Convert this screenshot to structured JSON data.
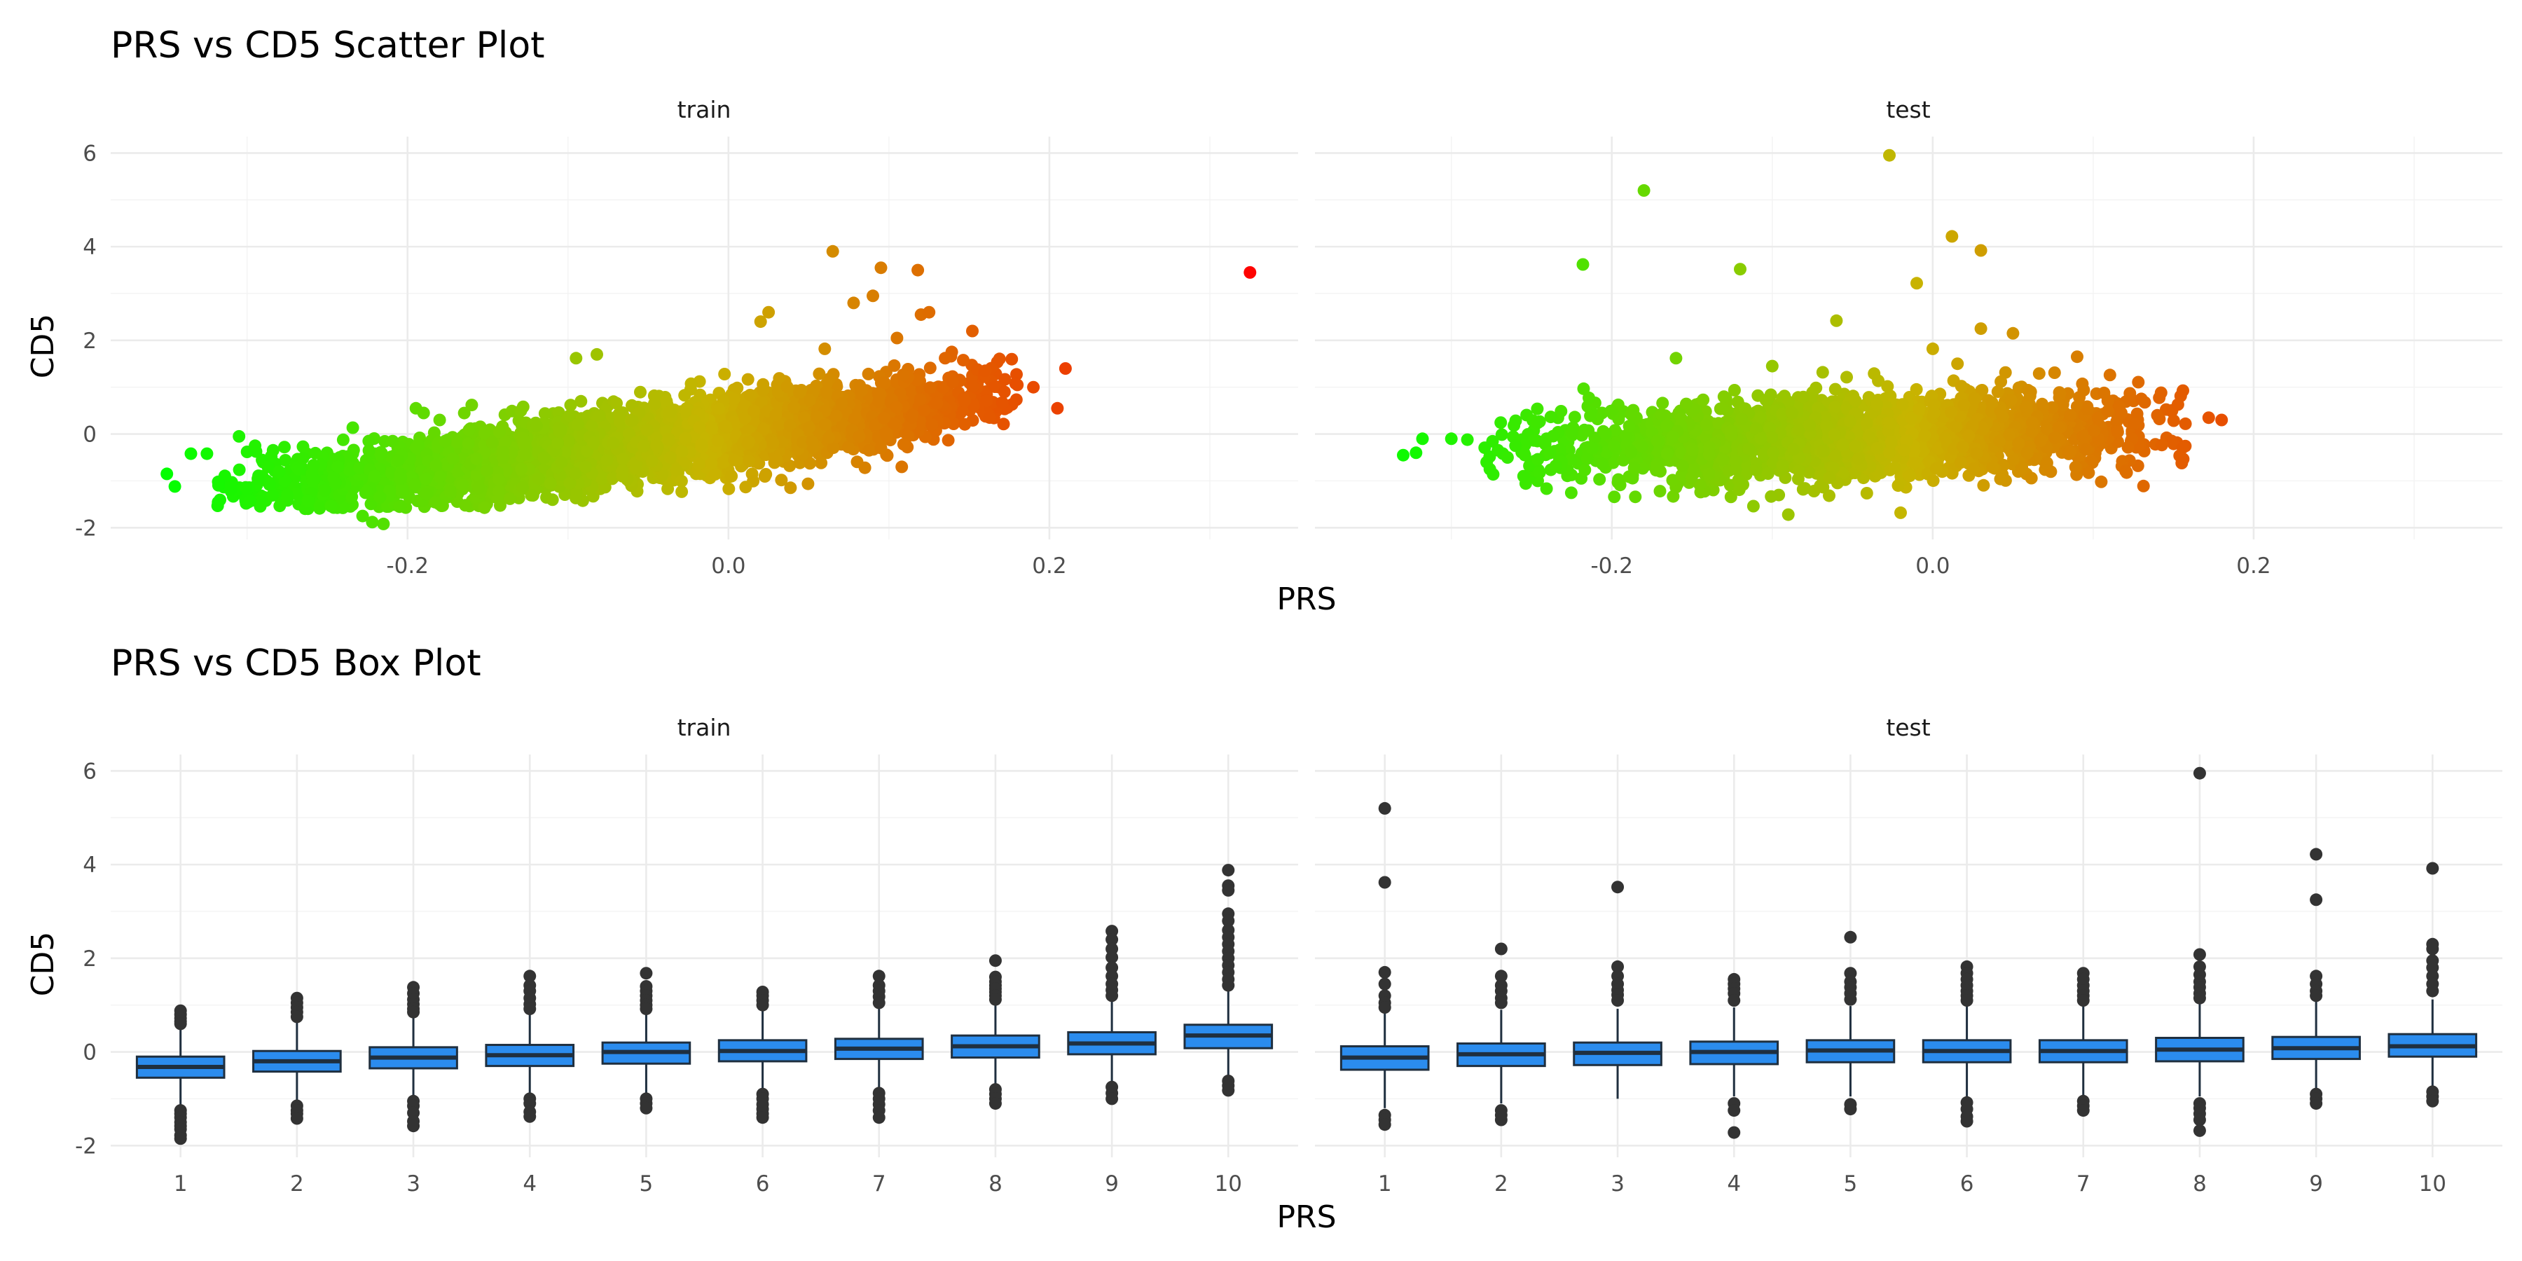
{
  "chart_data": [
    {
      "type": "scatter",
      "title": "PRS vs CD5 Scatter Plot",
      "xlabel": "PRS",
      "ylabel": "CD5",
      "xlim": [
        -0.385,
        0.355
      ],
      "ylim": [
        -2.25,
        6.35
      ],
      "x_ticks": [
        -0.2,
        0.0,
        0.2
      ],
      "x_tick_labels": [
        "-0.2",
        "0.0",
        "0.2"
      ],
      "y_ticks": [
        -2,
        0,
        2,
        4,
        6
      ],
      "y_tick_labels": [
        "-2",
        "0",
        "2",
        "4",
        "6"
      ],
      "grid": true,
      "legend": "none",
      "color_scale": {
        "low": "#00ff00",
        "mid": "#c8b400",
        "high": "#ff0000",
        "mapped_to": "PRS"
      },
      "facets": [
        {
          "label": "train",
          "n_points_approx": 12000,
          "trend": {
            "slope": 4.5,
            "intercept": 0.05,
            "sd": 0.38
          },
          "x_core_range": [
            -0.3,
            0.17
          ],
          "points": [
            [
              -0.35,
              -0.85
            ],
            [
              -0.345,
              -1.12
            ],
            [
              -0.335,
              -0.42
            ],
            [
              -0.325,
              -0.42
            ],
            [
              -0.318,
              -1.02
            ],
            [
              -0.31,
              -1.1
            ],
            [
              -0.305,
              -0.05
            ],
            [
              -0.3,
              -0.38
            ],
            [
              -0.295,
              -0.25
            ],
            [
              -0.29,
              -0.6
            ],
            [
              -0.287,
              -0.7
            ],
            [
              -0.28,
              -0.8
            ],
            [
              -0.275,
              -1.3
            ],
            [
              -0.262,
              -1.42
            ],
            [
              -0.228,
              -1.75
            ],
            [
              -0.222,
              -1.88
            ],
            [
              -0.215,
              -1.92
            ],
            [
              -0.205,
              -1.55
            ],
            [
              -0.19,
              0.45
            ],
            [
              -0.18,
              0.3
            ],
            [
              -0.16,
              0.62
            ],
            [
              -0.095,
              1.62
            ],
            [
              -0.082,
              1.7
            ],
            [
              0.02,
              2.4
            ],
            [
              0.025,
              2.6
            ],
            [
              0.06,
              1.82
            ],
            [
              0.065,
              3.9
            ],
            [
              0.078,
              2.8
            ],
            [
              0.09,
              2.95
            ],
            [
              0.095,
              3.55
            ],
            [
              0.105,
              2.05
            ],
            [
              0.118,
              3.5
            ],
            [
              0.12,
              2.55
            ],
            [
              0.125,
              2.6
            ],
            [
              0.135,
              1.62
            ],
            [
              0.152,
              2.2
            ],
            [
              0.16,
              1.35
            ],
            [
              0.172,
              0.9
            ],
            [
              0.18,
              1.05
            ],
            [
              0.19,
              1.0
            ],
            [
              0.205,
              0.55
            ],
            [
              0.21,
              1.4
            ],
            [
              0.325,
              3.45
            ],
            [
              0.085,
              -0.72
            ],
            [
              0.108,
              -0.7
            ],
            [
              0.095,
              -0.3
            ]
          ]
        },
        {
          "label": "test",
          "n_points_approx": 3000,
          "trend": {
            "slope": 0.9,
            "intercept": 0.0,
            "sd": 0.45
          },
          "x_core_range": [
            -0.26,
            0.15
          ],
          "points": [
            [
              -0.33,
              -0.45
            ],
            [
              -0.322,
              -0.4
            ],
            [
              -0.318,
              -0.1
            ],
            [
              -0.3,
              -0.1
            ],
            [
              -0.29,
              -0.12
            ],
            [
              -0.278,
              -0.6
            ],
            [
              -0.276,
              -0.75
            ],
            [
              -0.265,
              -0.5
            ],
            [
              -0.26,
              -0.25
            ],
            [
              -0.255,
              -0.9
            ],
            [
              -0.245,
              -0.82
            ],
            [
              -0.235,
              -0.68
            ],
            [
              -0.218,
              3.62
            ],
            [
              -0.18,
              5.2
            ],
            [
              -0.12,
              3.52
            ],
            [
              -0.06,
              2.42
            ],
            [
              -0.027,
              5.95
            ],
            [
              -0.01,
              3.22
            ],
            [
              0.012,
              4.22
            ],
            [
              0.03,
              3.92
            ],
            [
              0.03,
              2.25
            ],
            [
              0.05,
              2.15
            ],
            [
              0.09,
              1.65
            ],
            [
              0.13,
              0.75
            ],
            [
              0.14,
              0.4
            ],
            [
              0.172,
              0.35
            ],
            [
              0.18,
              0.3
            ],
            [
              0.105,
              -1.02
            ],
            [
              -0.09,
              -1.72
            ],
            [
              -0.02,
              -1.68
            ],
            [
              -0.17,
              -1.22
            ],
            [
              -0.16,
              1.62
            ],
            [
              -0.1,
              1.45
            ],
            [
              0.0,
              1.82
            ]
          ]
        }
      ]
    },
    {
      "type": "box",
      "title": "PRS vs CD5 Box Plot",
      "xlabel": "PRS",
      "ylabel": "CD5",
      "ylim": [
        -2.25,
        6.35
      ],
      "categories": [
        "1",
        "2",
        "3",
        "4",
        "5",
        "6",
        "7",
        "8",
        "9",
        "10"
      ],
      "y_ticks": [
        -2,
        0,
        2,
        4,
        6
      ],
      "y_tick_labels": [
        "-2",
        "0",
        "2",
        "4",
        "6"
      ],
      "grid": true,
      "legend": "none",
      "box_fill": "#2b8cee",
      "box_line": "#1f2f3f",
      "facets": [
        {
          "label": "train",
          "boxes": [
            {
              "q1": -0.55,
              "median": -0.32,
              "q3": -0.1,
              "whisk_lo": -1.2,
              "whisk_hi": 0.55,
              "outliers": [
                0.88,
                0.8,
                0.72,
                0.65,
                0.6,
                -1.25,
                -1.32,
                -1.4,
                -1.5,
                -1.58,
                -1.65,
                -1.78,
                -1.85
              ]
            },
            {
              "q1": -0.42,
              "median": -0.2,
              "q3": 0.02,
              "whisk_lo": -1.1,
              "whisk_hi": 0.65,
              "outliers": [
                1.15,
                1.05,
                0.95,
                0.85,
                0.75,
                -1.15,
                -1.25,
                -1.32,
                -1.42
              ]
            },
            {
              "q1": -0.35,
              "median": -0.12,
              "q3": 0.1,
              "whisk_lo": -1.0,
              "whisk_hi": 0.78,
              "outliers": [
                1.38,
                1.25,
                1.12,
                1.02,
                0.92,
                0.85,
                -1.05,
                -1.15,
                -1.3,
                -1.48,
                -1.58
              ]
            },
            {
              "q1": -0.3,
              "median": -0.07,
              "q3": 0.15,
              "whisk_lo": -0.95,
              "whisk_hi": 0.82,
              "outliers": [
                1.62,
                1.42,
                1.3,
                1.15,
                1.02,
                0.92,
                -1.0,
                -1.1,
                -1.28,
                -1.38
              ]
            },
            {
              "q1": -0.25,
              "median": 0.0,
              "q3": 0.2,
              "whisk_lo": -0.9,
              "whisk_hi": 0.86,
              "outliers": [
                1.68,
                1.4,
                1.3,
                1.2,
                1.1,
                1.0,
                0.92,
                -1.0,
                -1.1,
                -1.2
              ]
            },
            {
              "q1": -0.2,
              "median": 0.02,
              "q3": 0.25,
              "whisk_lo": -0.85,
              "whisk_hi": 0.92,
              "outliers": [
                1.28,
                1.2,
                1.1,
                1.0,
                -0.9,
                -1.0,
                -1.12,
                -1.22,
                -1.32,
                -1.4
              ]
            },
            {
              "q1": -0.15,
              "median": 0.07,
              "q3": 0.28,
              "whisk_lo": -0.8,
              "whisk_hi": 0.95,
              "outliers": [
                1.62,
                1.42,
                1.3,
                1.18,
                1.05,
                -0.88,
                -1.0,
                -1.12,
                -1.25,
                -1.4
              ]
            },
            {
              "q1": -0.12,
              "median": 0.12,
              "q3": 0.35,
              "whisk_lo": -0.75,
              "whisk_hi": 1.02,
              "outliers": [
                1.95,
                1.6,
                1.5,
                1.42,
                1.35,
                1.28,
                1.2,
                1.12,
                -0.8,
                -0.9,
                -1.0,
                -1.1
              ]
            },
            {
              "q1": -0.05,
              "median": 0.18,
              "q3": 0.42,
              "whisk_lo": -0.7,
              "whisk_hi": 1.08,
              "outliers": [
                2.58,
                2.4,
                2.2,
                2.02,
                1.8,
                1.62,
                1.45,
                1.32,
                1.2,
                -0.75,
                -0.88,
                -1.0
              ]
            },
            {
              "q1": 0.08,
              "median": 0.35,
              "q3": 0.58,
              "whisk_lo": -0.55,
              "whisk_hi": 1.3,
              "outliers": [
                3.88,
                3.55,
                3.45,
                2.95,
                2.8,
                2.6,
                2.45,
                2.3,
                2.15,
                2.0,
                1.85,
                1.7,
                1.55,
                1.42,
                -0.62,
                -0.72,
                -0.82
              ]
            }
          ]
        },
        {
          "label": "test",
          "boxes": [
            {
              "q1": -0.38,
              "median": -0.12,
              "q3": 0.12,
              "whisk_lo": -1.2,
              "whisk_hi": 0.85,
              "outliers": [
                5.2,
                3.62,
                1.7,
                1.45,
                1.2,
                1.05,
                0.95,
                -1.35,
                -1.45,
                -1.55
              ]
            },
            {
              "q1": -0.3,
              "median": -0.05,
              "q3": 0.18,
              "whisk_lo": -1.1,
              "whisk_hi": 0.9,
              "outliers": [
                2.2,
                1.62,
                1.42,
                1.3,
                1.15,
                1.05,
                -1.25,
                -1.35,
                -1.45
              ]
            },
            {
              "q1": -0.28,
              "median": -0.02,
              "q3": 0.2,
              "whisk_lo": -1.0,
              "whisk_hi": 0.92,
              "outliers": [
                3.52,
                1.82,
                1.62,
                1.45,
                1.32,
                1.22,
                1.1
              ]
            },
            {
              "q1": -0.26,
              "median": 0.0,
              "q3": 0.22,
              "whisk_lo": -0.95,
              "whisk_hi": 0.95,
              "outliers": [
                1.55,
                1.45,
                1.35,
                1.25,
                1.1,
                -1.1,
                -1.25,
                -1.72
              ]
            },
            {
              "q1": -0.22,
              "median": 0.03,
              "q3": 0.25,
              "whisk_lo": -0.95,
              "whisk_hi": 0.98,
              "outliers": [
                2.45,
                1.68,
                1.5,
                1.38,
                1.25,
                1.12,
                -1.12,
                -1.22
              ]
            },
            {
              "q1": -0.22,
              "median": 0.02,
              "q3": 0.25,
              "whisk_lo": -0.95,
              "whisk_hi": 0.98,
              "outliers": [
                1.82,
                1.68,
                1.55,
                1.42,
                1.3,
                1.2,
                1.1,
                -1.08,
                -1.22,
                -1.38,
                -1.48
              ]
            },
            {
              "q1": -0.22,
              "median": 0.02,
              "q3": 0.25,
              "whisk_lo": -0.95,
              "whisk_hi": 0.98,
              "outliers": [
                1.68,
                1.55,
                1.42,
                1.3,
                1.2,
                1.1,
                -1.05,
                -1.15,
                -1.25
              ]
            },
            {
              "q1": -0.2,
              "median": 0.05,
              "q3": 0.3,
              "whisk_lo": -0.95,
              "whisk_hi": 1.05,
              "outliers": [
                5.95,
                2.08,
                1.82,
                1.65,
                1.5,
                1.38,
                1.25,
                1.15,
                -1.1,
                -1.2,
                -1.32,
                -1.45,
                -1.68
              ]
            },
            {
              "q1": -0.15,
              "median": 0.08,
              "q3": 0.32,
              "whisk_lo": -0.85,
              "whisk_hi": 1.08,
              "outliers": [
                4.22,
                3.25,
                1.62,
                1.45,
                1.3,
                1.2,
                -0.9,
                -1.0,
                -1.1
              ]
            },
            {
              "q1": -0.1,
              "median": 0.12,
              "q3": 0.38,
              "whisk_lo": -0.78,
              "whisk_hi": 1.12,
              "outliers": [
                3.92,
                2.3,
                2.2,
                1.95,
                1.8,
                1.62,
                1.45,
                1.3,
                -0.85,
                -0.95,
                -1.05
              ]
            }
          ]
        }
      ]
    }
  ]
}
